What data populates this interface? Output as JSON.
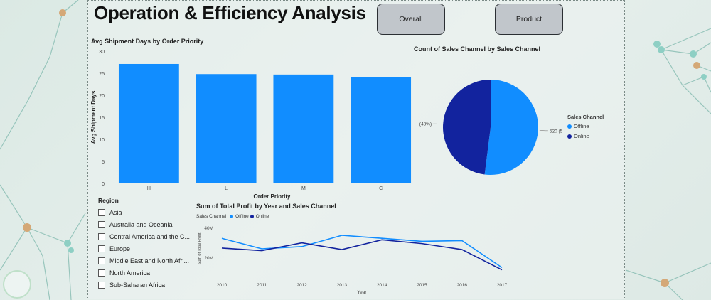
{
  "page": {
    "title": "Operation & Efficiency Analysis",
    "buttons": {
      "overall": "Overall",
      "product": "Product"
    }
  },
  "colors": {
    "offline": "#118dff",
    "online": "#12239e",
    "bar": "#118dff"
  },
  "bar_chart": {
    "title": "Avg Shipment Days by Order Priority",
    "xlabel": "Order Priority",
    "ylabel": "Avg Shipment Days"
  },
  "pie_chart": {
    "title": "Count of Sales Channel by Sales Channel",
    "legend_title": "Sales Channel",
    "labels": {
      "online": "480 (48%)",
      "offline": "520 (52%)"
    }
  },
  "line_chart": {
    "title": "Sum of Total Profit by Year and Sales Channel",
    "legend_title": "Sales Channel",
    "xlabel": "Year",
    "ylabel": "Sum of Total Profit"
  },
  "slicer": {
    "title": "Region",
    "items": [
      "Asia",
      "Australia and Oceania",
      "Central America and the C...",
      "Europe",
      "Middle East and North Afri...",
      "North America",
      "Sub-Saharan Africa"
    ]
  },
  "chart_data": [
    {
      "type": "bar",
      "title": "Avg Shipment Days by Order Priority",
      "xlabel": "Order Priority",
      "ylabel": "Avg Shipment Days",
      "categories": [
        "H",
        "L",
        "M",
        "C"
      ],
      "values": [
        27.1,
        24.8,
        24.7,
        24.1
      ],
      "ylim": [
        0,
        30
      ],
      "yticks": [
        0,
        5,
        10,
        15,
        20,
        25,
        30
      ]
    },
    {
      "type": "pie",
      "title": "Count of Sales Channel by Sales Channel",
      "legend_title": "Sales Channel",
      "legend_position": "right",
      "slices": [
        {
          "name": "Offline",
          "value": 520,
          "label": "520 (52%)"
        },
        {
          "name": "Online",
          "value": 480,
          "label": "480 (48%)"
        }
      ]
    },
    {
      "type": "line",
      "title": "Sum of Total Profit by Year and Sales Channel",
      "xlabel": "Year",
      "ylabel": "Sum of Total Profit",
      "legend_title": "Sales Channel",
      "legend_position": "top-left",
      "x": [
        2010,
        2011,
        2012,
        2013,
        2014,
        2015,
        2016,
        2017
      ],
      "yticks": [
        20000000,
        40000000
      ],
      "ytick_labels": [
        "20M",
        "40M"
      ],
      "ylim": [
        8000000,
        44000000
      ],
      "series": [
        {
          "name": "Offline",
          "values": [
            33000000,
            26000000,
            27500000,
            35000000,
            33000000,
            31000000,
            31500000,
            13500000
          ]
        },
        {
          "name": "Online",
          "values": [
            26500000,
            24800000,
            30000000,
            25500000,
            32000000,
            29500000,
            25500000,
            12000000
          ]
        }
      ]
    }
  ]
}
